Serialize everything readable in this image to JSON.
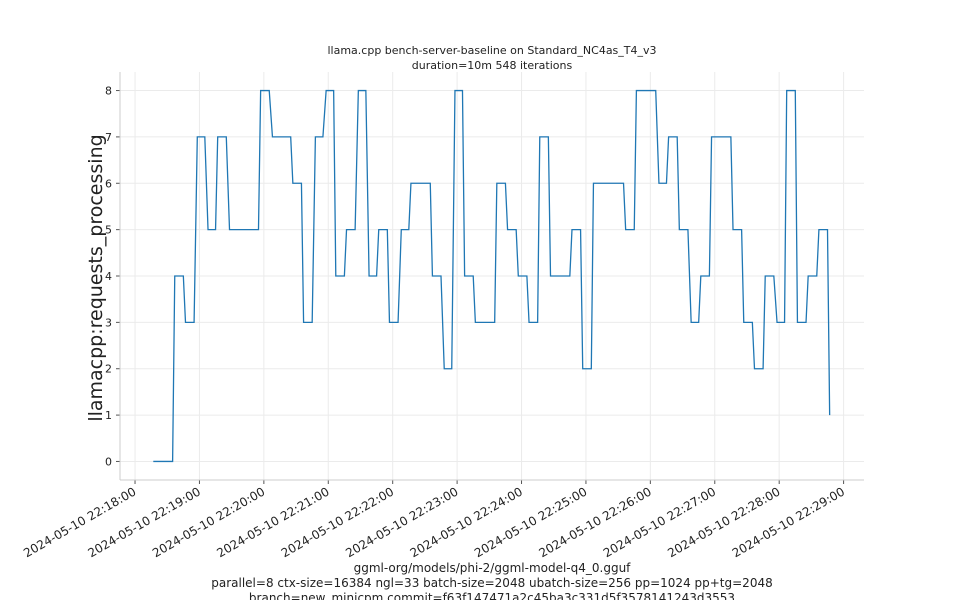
{
  "chart_data": {
    "type": "line",
    "title": "llama.cpp bench-server-baseline on Standard_NC4as_T4_v3",
    "subtitle": "duration=10m 548 iterations",
    "ylabel": "llamacpp:requests_processing",
    "xlabel": [
      "ggml-org/models/phi-2/ggml-model-q4_0.gguf",
      "parallel=8 ctx-size=16384 ngl=33 batch-size=2048 ubatch-size=256 pp=1024 pp+tg=2048",
      "branch=new_minicpm commit=f63f147471a2c45ba3c331d5f3578141243d3553"
    ],
    "color": "#1f77b4",
    "grid": true,
    "x": [
      "2024-05-10 22:18:17",
      "2024-05-10 22:18:35",
      "2024-05-10 22:18:37",
      "2024-05-10 22:18:45",
      "2024-05-10 22:18:47",
      "2024-05-10 22:18:55",
      "2024-05-10 22:18:58",
      "2024-05-10 22:19:05",
      "2024-05-10 22:19:08",
      "2024-05-10 22:19:15",
      "2024-05-10 22:19:17",
      "2024-05-10 22:19:25",
      "2024-05-10 22:19:28",
      "2024-05-10 22:19:55",
      "2024-05-10 22:19:57",
      "2024-05-10 22:20:05",
      "2024-05-10 22:20:08",
      "2024-05-10 22:20:25",
      "2024-05-10 22:20:27",
      "2024-05-10 22:20:35",
      "2024-05-10 22:20:37",
      "2024-05-10 22:20:45",
      "2024-05-10 22:20:48",
      "2024-05-10 22:20:55",
      "2024-05-10 22:20:58",
      "2024-05-10 22:21:05",
      "2024-05-10 22:21:07",
      "2024-05-10 22:21:15",
      "2024-05-10 22:21:17",
      "2024-05-10 22:21:25",
      "2024-05-10 22:21:28",
      "2024-05-10 22:21:35",
      "2024-05-10 22:21:38",
      "2024-05-10 22:21:45",
      "2024-05-10 22:21:47",
      "2024-05-10 22:21:55",
      "2024-05-10 22:21:57",
      "2024-05-10 22:22:05",
      "2024-05-10 22:22:08",
      "2024-05-10 22:22:15",
      "2024-05-10 22:22:17",
      "2024-05-10 22:22:35",
      "2024-05-10 22:22:37",
      "2024-05-10 22:22:45",
      "2024-05-10 22:22:48",
      "2024-05-10 22:22:55",
      "2024-05-10 22:22:58",
      "2024-05-10 22:23:05",
      "2024-05-10 22:23:07",
      "2024-05-10 22:23:15",
      "2024-05-10 22:23:17",
      "2024-05-10 22:23:35",
      "2024-05-10 22:23:37",
      "2024-05-10 22:23:45",
      "2024-05-10 22:23:47",
      "2024-05-10 22:23:55",
      "2024-05-10 22:23:57",
      "2024-05-10 22:24:05",
      "2024-05-10 22:24:07",
      "2024-05-10 22:24:15",
      "2024-05-10 22:24:17",
      "2024-05-10 22:24:25",
      "2024-05-10 22:24:27",
      "2024-05-10 22:24:45",
      "2024-05-10 22:24:47",
      "2024-05-10 22:24:55",
      "2024-05-10 22:24:57",
      "2024-05-10 22:25:05",
      "2024-05-10 22:25:07",
      "2024-05-10 22:25:35",
      "2024-05-10 22:25:37",
      "2024-05-10 22:25:45",
      "2024-05-10 22:25:47",
      "2024-05-10 22:26:05",
      "2024-05-10 22:26:08",
      "2024-05-10 22:26:15",
      "2024-05-10 22:26:17",
      "2024-05-10 22:26:25",
      "2024-05-10 22:26:27",
      "2024-05-10 22:26:35",
      "2024-05-10 22:26:38",
      "2024-05-10 22:26:45",
      "2024-05-10 22:26:47",
      "2024-05-10 22:26:55",
      "2024-05-10 22:26:57",
      "2024-05-10 22:27:15",
      "2024-05-10 22:27:17",
      "2024-05-10 22:27:25",
      "2024-05-10 22:27:27",
      "2024-05-10 22:27:35",
      "2024-05-10 22:27:37",
      "2024-05-10 22:27:45",
      "2024-05-10 22:27:47",
      "2024-05-10 22:27:55",
      "2024-05-10 22:27:58",
      "2024-05-10 22:28:05",
      "2024-05-10 22:28:07",
      "2024-05-10 22:28:15",
      "2024-05-10 22:28:17",
      "2024-05-10 22:28:25",
      "2024-05-10 22:28:27",
      "2024-05-10 22:28:35",
      "2024-05-10 22:28:37",
      "2024-05-10 22:28:45",
      "2024-05-10 22:28:47"
    ],
    "values": [
      0,
      0,
      4,
      4,
      3,
      3,
      7,
      7,
      5,
      5,
      7,
      7,
      5,
      5,
      8,
      8,
      7,
      7,
      6,
      6,
      3,
      3,
      7,
      7,
      8,
      8,
      4,
      4,
      5,
      5,
      8,
      8,
      4,
      4,
      5,
      5,
      3,
      3,
      5,
      5,
      6,
      6,
      4,
      4,
      2,
      2,
      8,
      8,
      4,
      4,
      3,
      3,
      6,
      6,
      5,
      5,
      4,
      4,
      3,
      3,
      7,
      7,
      4,
      4,
      5,
      5,
      2,
      2,
      6,
      6,
      5,
      5,
      8,
      8,
      6,
      6,
      7,
      7,
      5,
      5,
      3,
      3,
      4,
      4,
      7,
      7,
      5,
      5,
      3,
      3,
      2,
      2,
      4,
      4,
      3,
      3,
      8,
      8,
      3,
      3,
      4,
      4,
      5,
      5,
      1
    ],
    "xlim": [
      "2024-05-10 22:17:46",
      "2024-05-10 22:29:19"
    ],
    "xticks": [
      "2024-05-10 22:18:00",
      "2024-05-10 22:19:00",
      "2024-05-10 22:20:00",
      "2024-05-10 22:21:00",
      "2024-05-10 22:22:00",
      "2024-05-10 22:23:00",
      "2024-05-10 22:24:00",
      "2024-05-10 22:25:00",
      "2024-05-10 22:26:00",
      "2024-05-10 22:27:00",
      "2024-05-10 22:28:00",
      "2024-05-10 22:29:00"
    ],
    "ylim": [
      -0.4,
      8.4
    ],
    "yticks": [
      0,
      1,
      2,
      3,
      4,
      5,
      6,
      7,
      8
    ]
  }
}
